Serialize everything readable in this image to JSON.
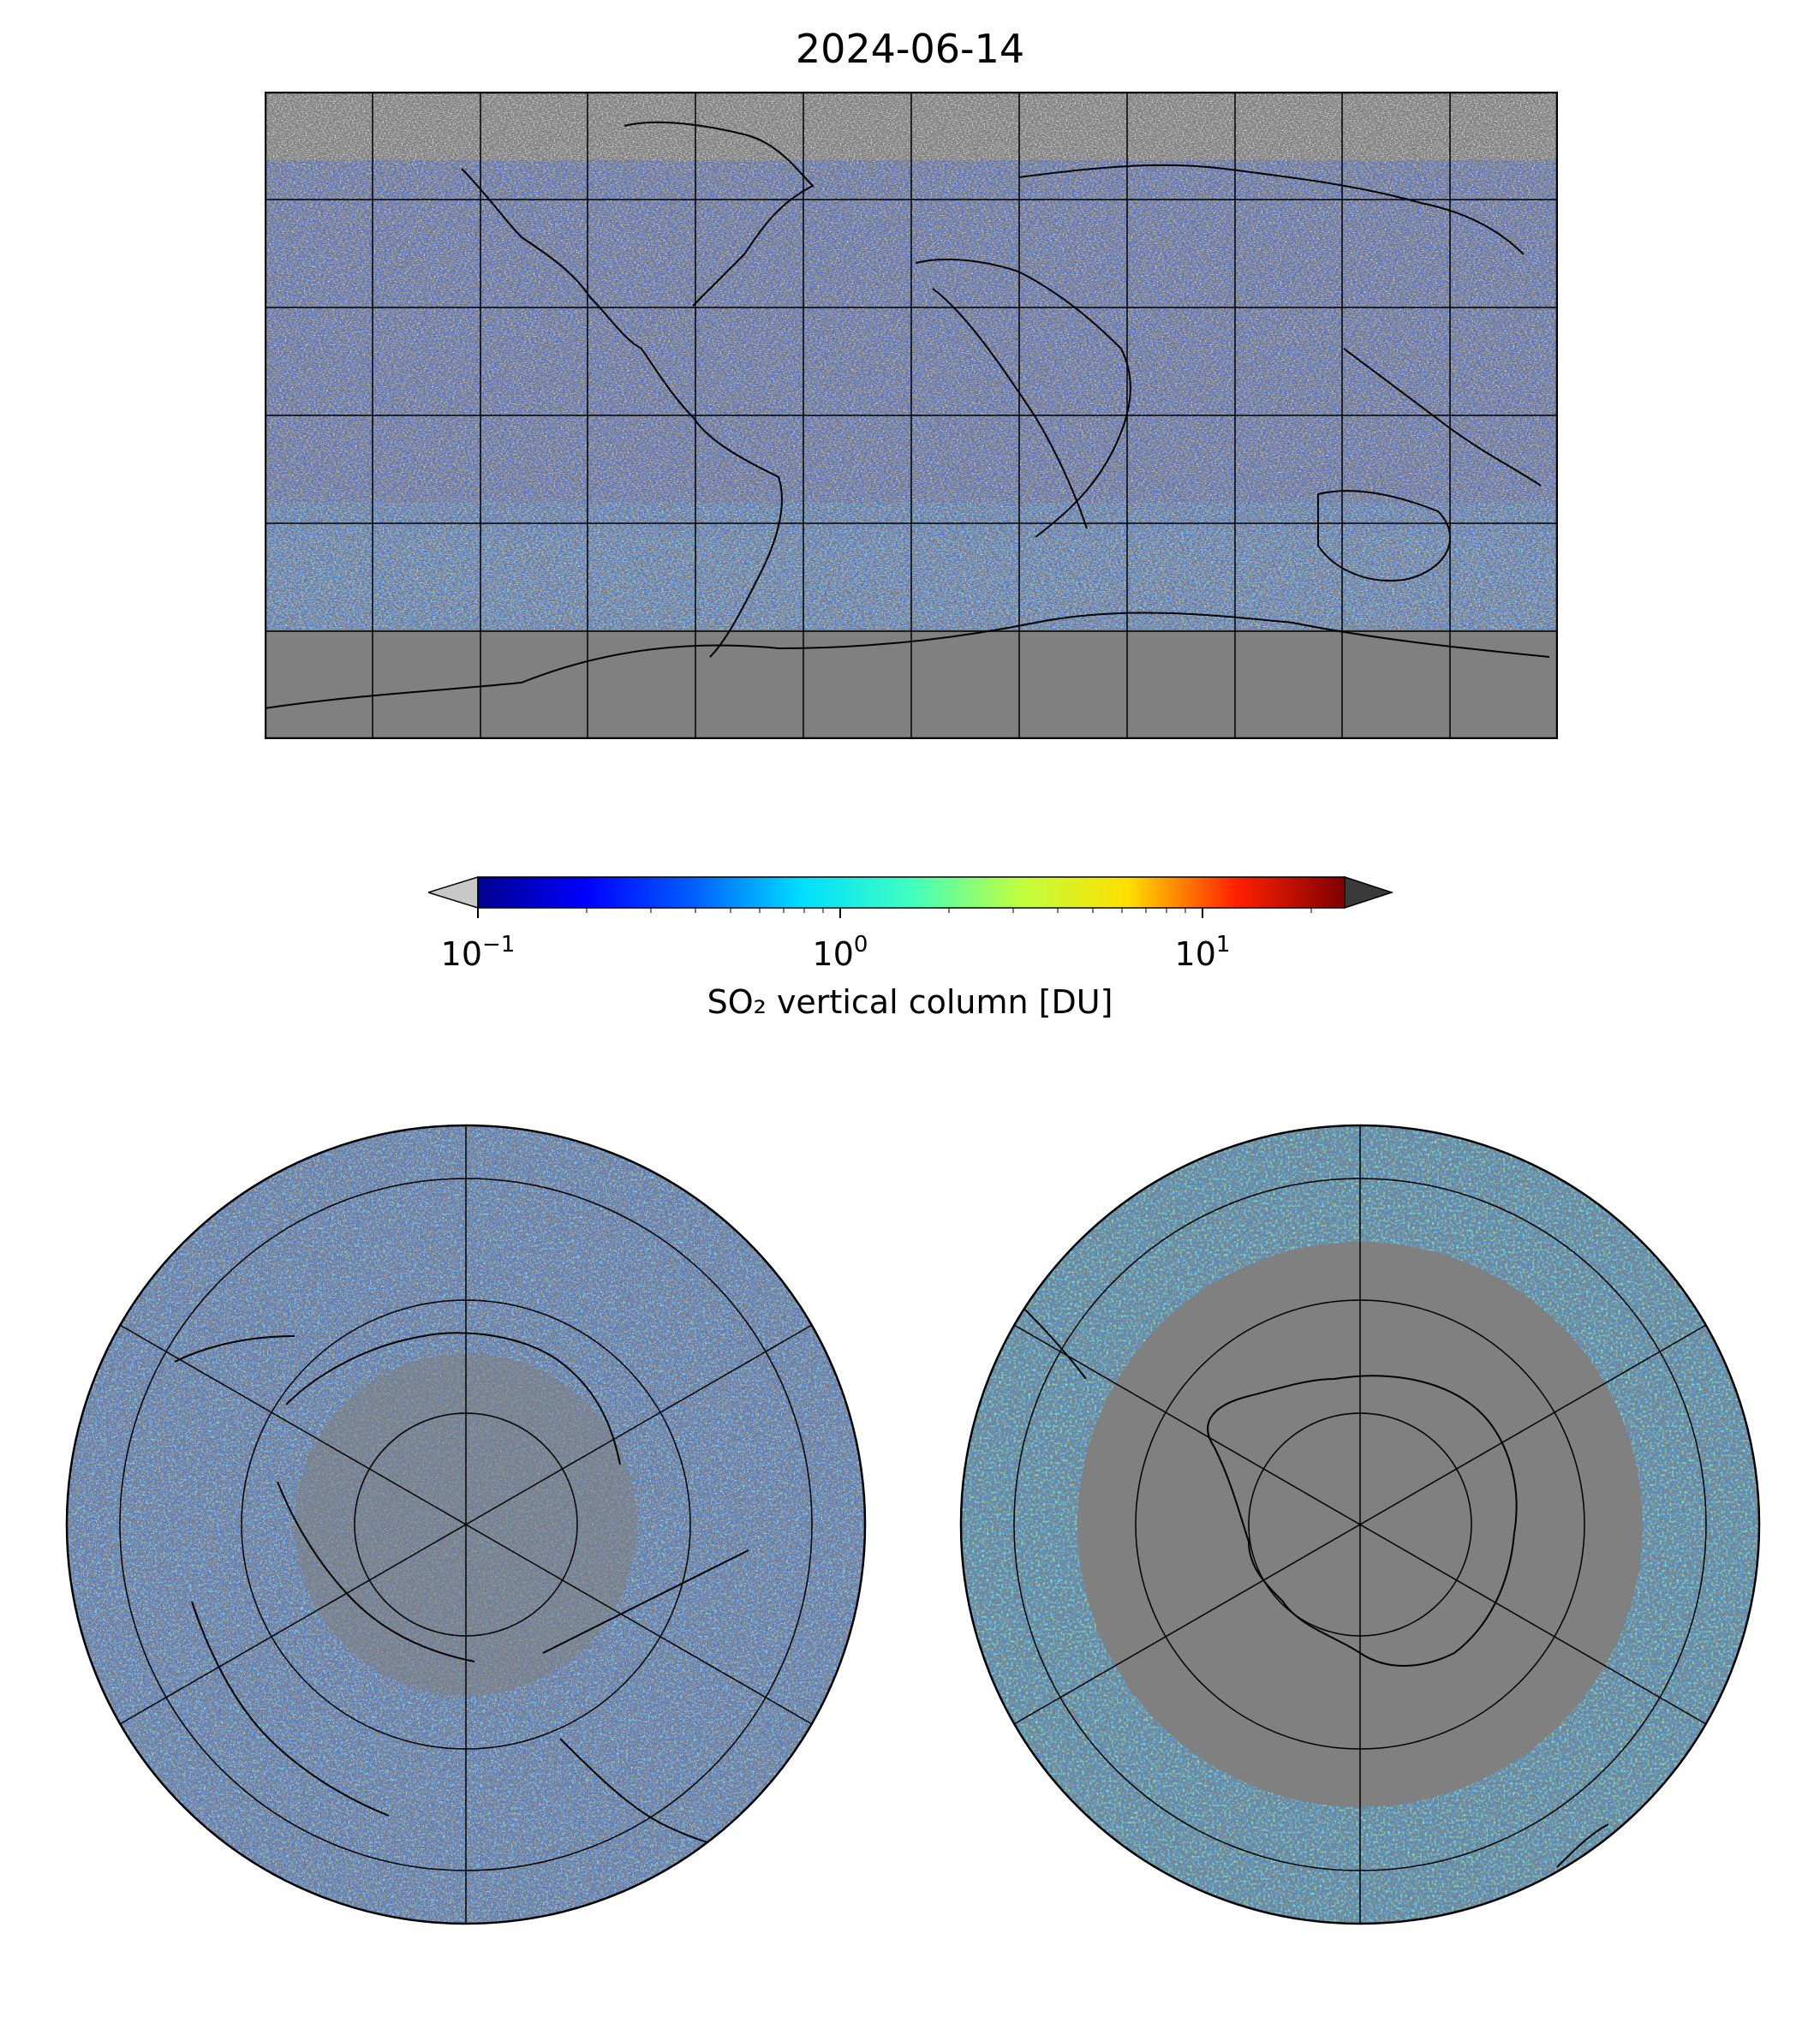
{
  "title": "2024-06-14",
  "colorbar": {
    "label": "SO₂ vertical column [DU]",
    "ticks": [
      {
        "base": "10",
        "exp": "−1"
      },
      {
        "base": "10",
        "exp": "0"
      },
      {
        "base": "10",
        "exp": "1"
      }
    ],
    "scale": "log",
    "range": [
      0.1,
      25
    ],
    "extend": "both",
    "under_color": "#c8c8c8",
    "over_color": "#3a3a3a",
    "colormap": "jet"
  },
  "map": {
    "background_land_nodata": "#808080",
    "nodata_light": "#c0c0c0",
    "gridline_color": "#000000"
  },
  "panels": [
    {
      "name": "global-plate-carree"
    },
    {
      "name": "north-polar-stereographic"
    },
    {
      "name": "south-polar-stereographic"
    }
  ]
}
